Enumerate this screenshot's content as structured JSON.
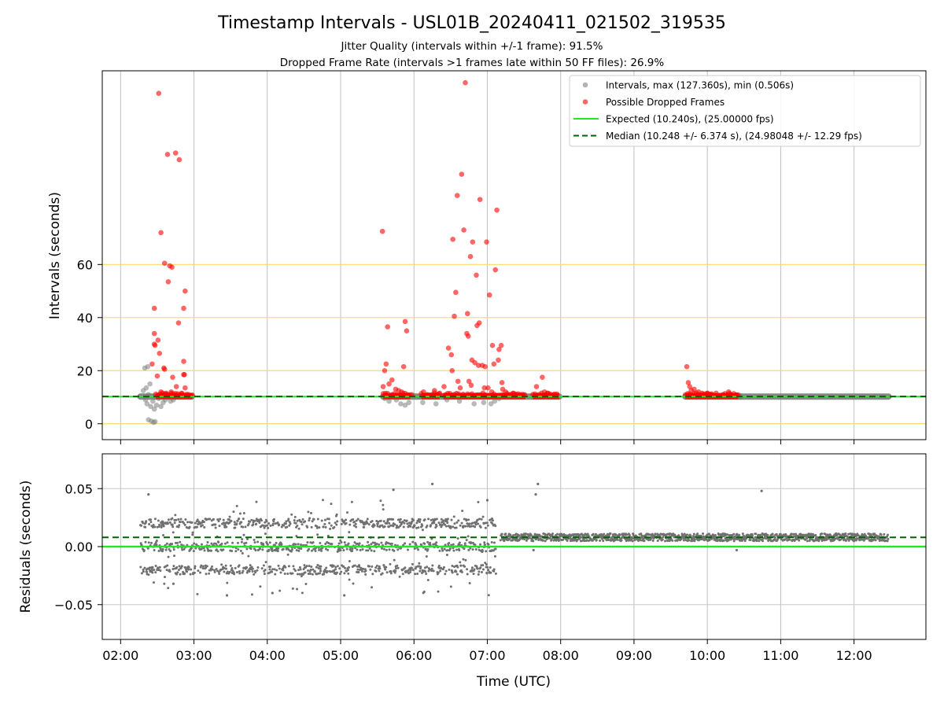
{
  "chart_data": {
    "title": "Timestamp Intervals - USL01B_20240411_021502_319535",
    "subtitle_lines": [
      "Jitter Quality (intervals within +/-1 frame): 91.5%",
      "Dropped Frame Rate (intervals >1 frames late within 50 FF files): 26.9%"
    ],
    "x_axis": {
      "label": "Time (UTC)",
      "range_hours": [
        1.75,
        12.98
      ],
      "ticks": [
        {
          "value": 2,
          "label": "02:00"
        },
        {
          "value": 3,
          "label": "03:00"
        },
        {
          "value": 4,
          "label": "04:00"
        },
        {
          "value": 5,
          "label": "05:00"
        },
        {
          "value": 6,
          "label": "06:00"
        },
        {
          "value": 7,
          "label": "07:00"
        },
        {
          "value": 8,
          "label": "08:00"
        },
        {
          "value": 9,
          "label": "09:00"
        },
        {
          "value": 10,
          "label": "10:00"
        },
        {
          "value": 11,
          "label": "11:00"
        },
        {
          "value": 12,
          "label": "12:00"
        }
      ]
    },
    "top_panel": {
      "type": "scatter",
      "ylabel": "Intervals (seconds)",
      "ylim": [
        -6,
        133
      ],
      "yticks": [
        0,
        20,
        40,
        60
      ],
      "horizontal_gridlines_color": "#ffd966",
      "legend": {
        "placement": "upper right",
        "entries": [
          {
            "label": "Intervals, max (127.360s), min (0.506s)",
            "kind": "marker",
            "color": "#808080"
          },
          {
            "label": "Possible Dropped Frames",
            "kind": "marker",
            "color": "#ff0000"
          },
          {
            "label": "Expected (10.240s), (25.00000 fps)",
            "kind": "line",
            "color": "#22e822"
          },
          {
            "label": "Median (10.248 +/- 6.374 s), (24.98048 +/- 12.29 fps)",
            "kind": "dashed",
            "color": "#006400"
          }
        ]
      },
      "expected_value": 10.24,
      "median_value": 10.248,
      "baseline_segments": [
        [
          2.27,
          2.97
        ],
        [
          5.58,
          6.06
        ],
        [
          6.08,
          7.98
        ],
        [
          9.7,
          10.45
        ],
        [
          10.45,
          12.47
        ]
      ],
      "gray_points": [
        [
          2.33,
          21.0
        ],
        [
          2.37,
          21.5
        ],
        [
          2.4,
          15.0
        ],
        [
          2.31,
          12.5
        ],
        [
          2.34,
          9.0
        ],
        [
          2.36,
          7.5
        ],
        [
          2.38,
          11.0
        ],
        [
          2.41,
          6.5
        ],
        [
          2.44,
          8.5
        ],
        [
          2.46,
          5.5
        ],
        [
          2.49,
          7.0
        ],
        [
          2.52,
          9.5
        ],
        [
          2.55,
          6.5
        ],
        [
          2.58,
          8.0
        ],
        [
          2.61,
          9.0
        ],
        [
          2.64,
          11.0
        ],
        [
          2.68,
          8.5
        ],
        [
          2.72,
          9.0
        ],
        [
          2.76,
          10.5
        ],
        [
          2.38,
          1.5
        ],
        [
          2.42,
          1.0
        ],
        [
          2.45,
          0.5
        ],
        [
          2.47,
          0.8
        ],
        [
          2.35,
          13.5
        ],
        [
          5.6,
          9.5
        ],
        [
          5.66,
          8.5
        ],
        [
          5.7,
          10.5
        ],
        [
          5.76,
          9.0
        ],
        [
          5.82,
          7.5
        ],
        [
          5.88,
          7.0
        ],
        [
          5.93,
          8.0
        ],
        [
          6.12,
          8.0
        ],
        [
          6.3,
          7.5
        ],
        [
          6.45,
          9.0
        ],
        [
          6.52,
          10.5
        ],
        [
          6.62,
          8.5
        ],
        [
          6.82,
          7.5
        ],
        [
          6.95,
          8.0
        ],
        [
          7.05,
          7.5
        ],
        [
          7.1,
          8.5
        ],
        [
          7.16,
          9.5
        ]
      ],
      "red_points": [
        [
          2.52,
          124.5
        ],
        [
          2.64,
          101.5
        ],
        [
          2.75,
          102.0
        ],
        [
          2.8,
          99.5
        ],
        [
          2.55,
          72.0
        ],
        [
          2.6,
          60.5
        ],
        [
          2.67,
          59.5
        ],
        [
          2.7,
          59.0
        ],
        [
          2.65,
          53.5
        ],
        [
          2.88,
          50.0
        ],
        [
          2.46,
          43.5
        ],
        [
          2.86,
          43.5
        ],
        [
          2.79,
          38.0
        ],
        [
          2.46,
          34.0
        ],
        [
          2.51,
          31.5
        ],
        [
          2.47,
          29.5
        ],
        [
          2.46,
          30.0
        ],
        [
          2.53,
          26.5
        ],
        [
          2.86,
          23.5
        ],
        [
          2.43,
          22.5
        ],
        [
          2.59,
          21.0
        ],
        [
          2.6,
          20.5
        ],
        [
          2.71,
          17.5
        ],
        [
          2.76,
          14.0
        ],
        [
          2.5,
          18.0
        ],
        [
          2.86,
          18.5
        ],
        [
          2.87,
          18.5
        ],
        [
          2.88,
          13.5
        ],
        [
          2.55,
          12.0
        ],
        [
          2.62,
          11.5
        ],
        [
          2.69,
          12.0
        ],
        [
          2.83,
          11.5
        ],
        [
          2.93,
          11.0
        ],
        [
          2.98,
          10.8
        ],
        [
          5.57,
          72.5
        ],
        [
          5.62,
          22.5
        ],
        [
          5.6,
          20.0
        ],
        [
          5.58,
          14.0
        ],
        [
          5.66,
          15.0
        ],
        [
          5.7,
          16.5
        ],
        [
          5.64,
          36.5
        ],
        [
          5.88,
          38.5
        ],
        [
          5.9,
          35.0
        ],
        [
          5.86,
          21.5
        ],
        [
          5.75,
          13.0
        ],
        [
          5.79,
          12.5
        ],
        [
          5.83,
          12.0
        ],
        [
          5.97,
          11.0
        ],
        [
          6.13,
          12.0
        ],
        [
          6.18,
          11.0
        ],
        [
          6.28,
          12.5
        ],
        [
          6.35,
          11.5
        ],
        [
          6.41,
          14.0
        ],
        [
          6.47,
          28.5
        ],
        [
          6.51,
          26.0
        ],
        [
          6.52,
          20.0
        ],
        [
          6.53,
          69.5
        ],
        [
          6.55,
          40.5
        ],
        [
          6.57,
          49.5
        ],
        [
          6.59,
          86.0
        ],
        [
          6.65,
          94.0
        ],
        [
          6.68,
          73.0
        ],
        [
          6.7,
          128.5
        ],
        [
          6.73,
          41.5
        ],
        [
          6.72,
          34.0
        ],
        [
          6.74,
          33.0
        ],
        [
          6.77,
          63.0
        ],
        [
          6.8,
          68.5
        ],
        [
          6.85,
          56.0
        ],
        [
          6.89,
          38.0
        ],
        [
          6.9,
          84.5
        ],
        [
          6.86,
          37.0
        ],
        [
          6.93,
          22.0
        ],
        [
          6.97,
          21.5
        ],
        [
          6.99,
          68.5
        ],
        [
          7.03,
          48.5
        ],
        [
          7.07,
          29.5
        ],
        [
          7.09,
          22.5
        ],
        [
          7.11,
          58.0
        ],
        [
          7.13,
          80.5
        ],
        [
          7.16,
          28.0
        ],
        [
          7.19,
          29.5
        ],
        [
          7.15,
          24.0
        ],
        [
          7.2,
          15.5
        ],
        [
          6.79,
          24.0
        ],
        [
          6.83,
          23.0
        ],
        [
          6.88,
          22.0
        ],
        [
          6.6,
          16.0
        ],
        [
          6.63,
          13.5
        ],
        [
          6.75,
          16.0
        ],
        [
          6.78,
          14.5
        ],
        [
          6.96,
          13.5
        ],
        [
          7.01,
          13.5
        ],
        [
          7.06,
          12.0
        ],
        [
          7.21,
          13.0
        ],
        [
          7.25,
          12.0
        ],
        [
          7.35,
          11.5
        ],
        [
          7.45,
          11.0
        ],
        [
          7.67,
          14.0
        ],
        [
          7.75,
          17.5
        ],
        [
          7.78,
          12.0
        ],
        [
          7.82,
          11.5
        ],
        [
          7.9,
          11.0
        ],
        [
          9.72,
          21.5
        ],
        [
          9.74,
          15.5
        ],
        [
          9.76,
          14.0
        ],
        [
          9.78,
          12.5
        ],
        [
          9.82,
          13.0
        ],
        [
          9.88,
          12.0
        ],
        [
          9.93,
          11.5
        ],
        [
          10.0,
          11.5
        ],
        [
          10.05,
          11.0
        ],
        [
          10.29,
          12.0
        ],
        [
          10.32,
          11.0
        ],
        [
          10.4,
          10.8
        ]
      ],
      "red_band_segments": [
        [
          2.48,
          2.98,
          10.4
        ],
        [
          5.58,
          5.95,
          10.4
        ],
        [
          6.1,
          6.35,
          10.4
        ],
        [
          6.4,
          7.18,
          10.4
        ],
        [
          7.18,
          7.52,
          10.4
        ],
        [
          7.62,
          7.98,
          10.4
        ],
        [
          9.7,
          10.42,
          10.4
        ]
      ]
    },
    "bottom_panel": {
      "type": "scatter",
      "ylabel": "Residuals (seconds)",
      "ylim": [
        -0.08,
        0.08
      ],
      "yticks": [
        {
          "value": 0.05,
          "label": "0.05"
        },
        {
          "value": 0.0,
          "label": "0.00"
        },
        {
          "value": -0.05,
          "label": "−0.05"
        }
      ],
      "expected_residual": 0.0,
      "median_residual": 0.008,
      "noisy_segment": {
        "x_range": [
          2.27,
          7.12
        ],
        "levels": [
          0.02,
          0.0,
          -0.02
        ],
        "spread": 0.022
      },
      "quiet_segment": {
        "x_range": [
          7.18,
          12.47
        ],
        "center": 0.008,
        "spread": 0.004
      },
      "outliers": [
        [
          2.38,
          0.045
        ],
        [
          2.43,
          -0.02
        ],
        [
          2.72,
          -0.032
        ],
        [
          3.45,
          -0.042
        ],
        [
          4.07,
          -0.04
        ],
        [
          5.05,
          -0.042
        ],
        [
          5.72,
          0.049
        ],
        [
          6.14,
          -0.039
        ],
        [
          6.25,
          0.054
        ],
        [
          7.0,
          0.04
        ],
        [
          7.69,
          0.054
        ],
        [
          7.66,
          0.045
        ],
        [
          7.63,
          -0.003
        ],
        [
          10.74,
          0.048
        ],
        [
          10.4,
          -0.003
        ]
      ]
    }
  }
}
